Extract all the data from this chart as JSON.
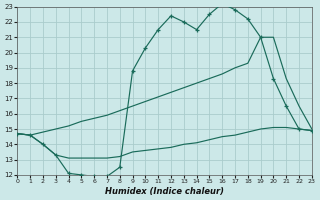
{
  "xlabel": "Humidex (Indice chaleur)",
  "bg_color": "#cce8e8",
  "grid_color": "#aacccc",
  "line_color": "#1a6b5a",
  "xlim": [
    0,
    23
  ],
  "ylim": [
    12,
    23
  ],
  "xticks": [
    0,
    1,
    2,
    3,
    4,
    5,
    6,
    7,
    8,
    9,
    10,
    11,
    12,
    13,
    14,
    15,
    16,
    17,
    18,
    19,
    20,
    21,
    22,
    23
  ],
  "yticks": [
    12,
    13,
    14,
    15,
    16,
    17,
    18,
    19,
    20,
    21,
    22,
    23
  ],
  "curve1_x": [
    0,
    1,
    2,
    3,
    4,
    5,
    6,
    7,
    8,
    9,
    10,
    11,
    12,
    13,
    14,
    15,
    16,
    17,
    18,
    19,
    20,
    21,
    22,
    23
  ],
  "curve1_y": [
    14.7,
    14.6,
    14.0,
    13.3,
    12.1,
    12.0,
    11.9,
    11.9,
    12.5,
    18.8,
    20.3,
    21.5,
    22.4,
    22.0,
    21.5,
    22.5,
    23.2,
    22.8,
    22.2,
    21.0,
    18.3,
    16.5,
    15.0,
    14.9
  ],
  "curve2_x": [
    0,
    1,
    2,
    3,
    4,
    5,
    6,
    7,
    8,
    9,
    10,
    11,
    12,
    13,
    14,
    15,
    16,
    17,
    18,
    19,
    20,
    21,
    22,
    23
  ],
  "curve2_y": [
    14.7,
    14.6,
    14.8,
    15.0,
    15.2,
    15.5,
    15.7,
    15.9,
    16.2,
    16.5,
    16.8,
    17.1,
    17.4,
    17.7,
    18.0,
    18.3,
    18.6,
    19.0,
    19.3,
    21.0,
    21.0,
    18.3,
    16.5,
    15.0
  ],
  "curve3_x": [
    0,
    1,
    2,
    3,
    4,
    5,
    6,
    7,
    8,
    9,
    10,
    11,
    12,
    13,
    14,
    15,
    16,
    17,
    18,
    19,
    20,
    21,
    22,
    23
  ],
  "curve3_y": [
    14.7,
    14.6,
    14.0,
    13.3,
    13.1,
    13.1,
    13.1,
    13.1,
    13.2,
    13.5,
    13.6,
    13.7,
    13.8,
    14.0,
    14.1,
    14.3,
    14.5,
    14.6,
    14.8,
    15.0,
    15.1,
    15.1,
    15.0,
    14.9
  ]
}
